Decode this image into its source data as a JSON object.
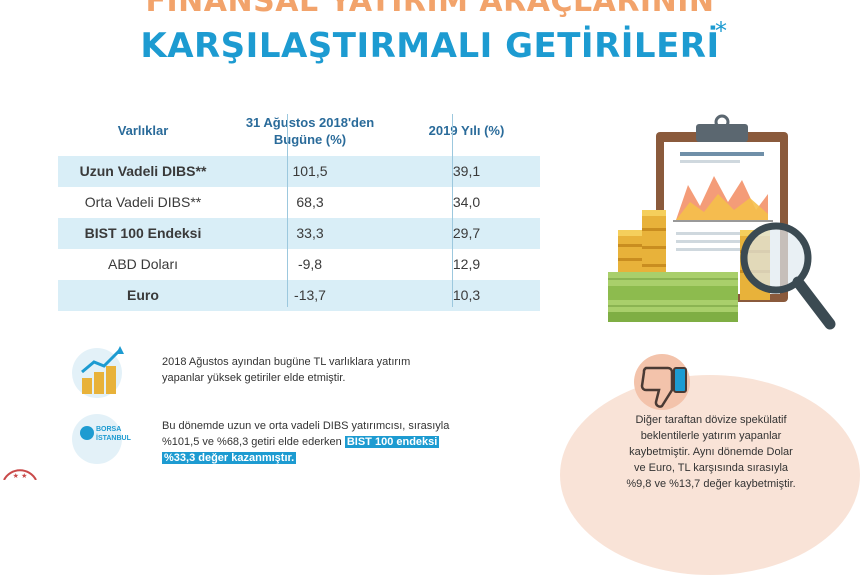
{
  "title": {
    "top": "FİNANSAL YATIRIM ARAÇLARININ",
    "main": "KARŞILAŞTIRMALI GETİRİLERİ",
    "asterisk": "*"
  },
  "table": {
    "headers": [
      "Varlıklar",
      "31 Ağustos 2018'den",
      "Bugüne (%)",
      "2019 Yılı (%)"
    ],
    "rows": [
      {
        "asset": "Uzun Vadeli DIBS**",
        "since_2018": "101,5",
        "y2019": "39,1"
      },
      {
        "asset": "Orta Vadeli DIBS**",
        "since_2018": "68,3",
        "y2019": "34,0"
      },
      {
        "asset": "BIST 100 Endeksi",
        "since_2018": "33,3",
        "y2019": "29,7"
      },
      {
        "asset": "ABD Doları",
        "since_2018": "-9,8",
        "y2019": "12,9"
      },
      {
        "asset": "Euro",
        "since_2018": "-13,7",
        "y2019": "10,3"
      }
    ]
  },
  "notes": {
    "note1_line1": "2018 Ağustos ayından bugüne TL varlıklara yatırım",
    "note1_line2": "yapanlar yüksek getiriler elde etmiştir.",
    "borsa_logo_line1": "BORSA",
    "borsa_logo_line2": "İSTANBUL",
    "note2_line1": "Bu dönemde uzun ve orta vadeli DIBS yatırımcısı, sırasıyla",
    "note2_line2a": "%101,5 ve %68,3 getiri elde ederken ",
    "note2_line2b": "BIST 100 endeksi",
    "note2_line3": "%33,3 değer kazanmıştır.",
    "peach_line1": "Diğer taraftan dövize spekülatif",
    "peach_line2": "beklentilerle yatırım yapanlar",
    "peach_line3": "kaybetmiştir. Aynı dönemde Dolar",
    "peach_line4": "ve Euro, TL karşısında sırasıyla",
    "peach_line5": "%9,8 ve %13,7 değer kaybetmiştir."
  },
  "colors": {
    "accent": "#1d9bd1",
    "title_top": "#f2a36b",
    "row_alt": "#d9eef7",
    "peach": "#f9e3d7"
  }
}
